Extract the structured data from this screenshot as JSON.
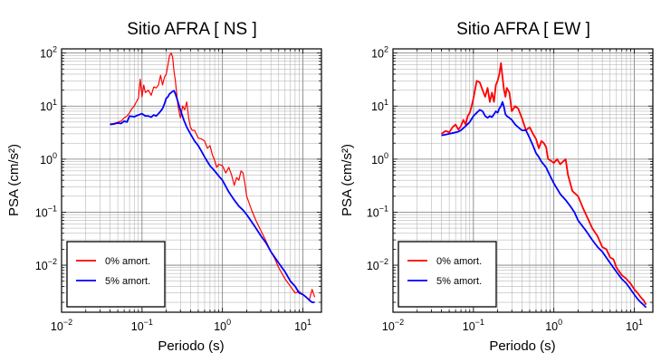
{
  "chart_data": [
    {
      "type": "line",
      "title": "Sitio AFRA [ NS ]",
      "xlabel": "Periodo (s)",
      "ylabel": "PSA (cm/s²)",
      "xscale": "log",
      "yscale": "log",
      "xlim": [
        0.01,
        17
      ],
      "ylim": [
        0.0013,
        120
      ],
      "x_ticks": [
        {
          "value": 0.01,
          "base": "10",
          "exp": "−2"
        },
        {
          "value": 0.1,
          "base": "10",
          "exp": "−1"
        },
        {
          "value": 1,
          "base": "10",
          "exp": "0"
        },
        {
          "value": 10,
          "base": "10",
          "exp": "1"
        }
      ],
      "y_ticks": [
        {
          "value": 0.01,
          "base": "10",
          "exp": "−2"
        },
        {
          "value": 0.1,
          "base": "10",
          "exp": "−1"
        },
        {
          "value": 1,
          "base": "10",
          "exp": "0"
        },
        {
          "value": 10,
          "base": "10",
          "exp": "1"
        },
        {
          "value": 100,
          "base": "10",
          "exp": "2"
        }
      ],
      "grid": true,
      "legend_position": "bottom-left",
      "series": [
        {
          "name": "0% amort.",
          "color": "#ff0000",
          "width": 1.2,
          "x": [
            0.04,
            0.045,
            0.05,
            0.055,
            0.06,
            0.065,
            0.07,
            0.075,
            0.08,
            0.085,
            0.09,
            0.095,
            0.1,
            0.105,
            0.11,
            0.12,
            0.13,
            0.14,
            0.15,
            0.16,
            0.17,
            0.18,
            0.19,
            0.2,
            0.21,
            0.22,
            0.23,
            0.24,
            0.25,
            0.26,
            0.28,
            0.3,
            0.32,
            0.34,
            0.36,
            0.38,
            0.4,
            0.42,
            0.45,
            0.5,
            0.55,
            0.6,
            0.65,
            0.7,
            0.75,
            0.8,
            0.85,
            0.9,
            1.0,
            1.1,
            1.2,
            1.3,
            1.4,
            1.5,
            1.6,
            1.7,
            1.8,
            1.9,
            2.0,
            2.3,
            2.6,
            3.0,
            3.5,
            4.0,
            4.5,
            5.0,
            5.5,
            6.0,
            7.0,
            8.0,
            9.0,
            10.0,
            11.0,
            12.0,
            13.0,
            14.0
          ],
          "y": [
            4.6,
            4.7,
            5.0,
            5.2,
            6.0,
            6.5,
            7.5,
            9.0,
            10.0,
            12.0,
            14.0,
            32.0,
            15.0,
            25.0,
            18.0,
            20.0,
            16.0,
            23.0,
            22.0,
            25.0,
            38.0,
            25.0,
            35.0,
            40.0,
            60.0,
            90.0,
            100.0,
            85.0,
            45.0,
            30.0,
            10.0,
            6.0,
            10.0,
            8.5,
            12.0,
            6.0,
            4.0,
            3.5,
            3.5,
            2.5,
            2.4,
            2.2,
            1.6,
            1.8,
            1.2,
            0.95,
            0.7,
            0.8,
            0.75,
            0.55,
            0.7,
            0.5,
            0.32,
            0.45,
            0.4,
            0.6,
            0.55,
            0.35,
            0.2,
            0.11,
            0.07,
            0.045,
            0.028,
            0.018,
            0.013,
            0.009,
            0.007,
            0.0055,
            0.004,
            0.003,
            0.0032,
            0.0028,
            0.0025,
            0.0022,
            0.0035,
            0.0025
          ]
        },
        {
          "name": "5% amort.",
          "color": "#0000ff",
          "width": 1.8,
          "x": [
            0.04,
            0.045,
            0.05,
            0.055,
            0.06,
            0.065,
            0.07,
            0.08,
            0.09,
            0.1,
            0.11,
            0.12,
            0.13,
            0.14,
            0.15,
            0.16,
            0.17,
            0.18,
            0.19,
            0.2,
            0.21,
            0.22,
            0.23,
            0.24,
            0.25,
            0.26,
            0.28,
            0.3,
            0.33,
            0.36,
            0.4,
            0.45,
            0.5,
            0.55,
            0.6,
            0.65,
            0.7,
            0.8,
            0.9,
            1.0,
            1.2,
            1.4,
            1.6,
            1.8,
            2.0,
            2.5,
            3.0,
            3.5,
            4.0,
            5.0,
            6.0,
            7.0,
            8.0,
            9.0,
            10.0,
            11.0,
            12.0,
            13.0,
            14.0
          ],
          "y": [
            4.5,
            4.6,
            4.8,
            4.7,
            5.2,
            5.0,
            6.5,
            6.3,
            6.8,
            7.2,
            6.5,
            6.5,
            6.2,
            6.8,
            6.5,
            7.2,
            8.0,
            9.0,
            11.0,
            14.0,
            15.0,
            17.0,
            18.0,
            19.0,
            19.5,
            17.0,
            12.0,
            8.5,
            5.5,
            4.0,
            3.0,
            2.2,
            1.8,
            1.4,
            1.1,
            0.9,
            0.75,
            0.6,
            0.48,
            0.4,
            0.24,
            0.17,
            0.13,
            0.11,
            0.09,
            0.055,
            0.036,
            0.026,
            0.018,
            0.011,
            0.0075,
            0.005,
            0.004,
            0.003,
            0.0028,
            0.0025,
            0.0022,
            0.002,
            0.002
          ]
        }
      ]
    },
    {
      "type": "line",
      "title": "Sitio AFRA [ EW ]",
      "xlabel": "Periodo (s)",
      "ylabel": "PSA (cm/s²)",
      "xscale": "log",
      "yscale": "log",
      "xlim": [
        0.01,
        17
      ],
      "ylim": [
        0.0013,
        120
      ],
      "x_ticks": [
        {
          "value": 0.01,
          "base": "10",
          "exp": "−2"
        },
        {
          "value": 0.1,
          "base": "10",
          "exp": "−1"
        },
        {
          "value": 1,
          "base": "10",
          "exp": "0"
        },
        {
          "value": 10,
          "base": "10",
          "exp": "1"
        }
      ],
      "y_ticks": [
        {
          "value": 0.01,
          "base": "10",
          "exp": "−2"
        },
        {
          "value": 0.1,
          "base": "10",
          "exp": "−1"
        },
        {
          "value": 1,
          "base": "10",
          "exp": "0"
        },
        {
          "value": 10,
          "base": "10",
          "exp": "1"
        },
        {
          "value": 100,
          "base": "10",
          "exp": "2"
        }
      ],
      "grid": true,
      "legend_position": "bottom-left",
      "series": [
        {
          "name": "0% amort.",
          "color": "#ff0000",
          "width": 1.8,
          "x": [
            0.04,
            0.045,
            0.05,
            0.055,
            0.06,
            0.065,
            0.07,
            0.075,
            0.08,
            0.085,
            0.09,
            0.095,
            0.1,
            0.11,
            0.12,
            0.13,
            0.14,
            0.15,
            0.16,
            0.17,
            0.18,
            0.19,
            0.2,
            0.21,
            0.22,
            0.23,
            0.24,
            0.25,
            0.26,
            0.28,
            0.3,
            0.33,
            0.36,
            0.4,
            0.45,
            0.5,
            0.55,
            0.6,
            0.65,
            0.7,
            0.75,
            0.8,
            0.85,
            0.9,
            1.0,
            1.1,
            1.2,
            1.3,
            1.4,
            1.5,
            1.7,
            2.0,
            2.3,
            2.6,
            3.0,
            3.5,
            4.0,
            4.5,
            5.0,
            5.5,
            6.0,
            7.0,
            8.0,
            9.0,
            10.0,
            11.0,
            12.0,
            13.0,
            14.0
          ],
          "y": [
            3.0,
            3.4,
            3.2,
            4.0,
            4.5,
            3.6,
            4.2,
            5.5,
            4.5,
            6.5,
            7.5,
            10.0,
            14.0,
            30.0,
            28.0,
            20.0,
            15.0,
            22.0,
            12.0,
            18.0,
            12.0,
            25.0,
            30.0,
            40.0,
            65.0,
            35.0,
            20.0,
            15.0,
            22.0,
            18.0,
            8.0,
            10.0,
            9.0,
            6.0,
            3.5,
            4.0,
            3.0,
            2.4,
            1.6,
            2.2,
            2.0,
            1.7,
            1.0,
            0.95,
            0.85,
            1.0,
            0.8,
            0.9,
            1.0,
            0.5,
            0.25,
            0.2,
            0.12,
            0.08,
            0.05,
            0.035,
            0.022,
            0.02,
            0.014,
            0.013,
            0.009,
            0.0065,
            0.0055,
            0.0045,
            0.0035,
            0.003,
            0.0025,
            0.0022,
            0.0018
          ]
        },
        {
          "name": "5% amort.",
          "color": "#0000ff",
          "width": 1.8,
          "x": [
            0.04,
            0.045,
            0.05,
            0.055,
            0.06,
            0.065,
            0.07,
            0.08,
            0.09,
            0.1,
            0.11,
            0.12,
            0.13,
            0.14,
            0.15,
            0.16,
            0.17,
            0.18,
            0.19,
            0.2,
            0.21,
            0.22,
            0.23,
            0.24,
            0.25,
            0.26,
            0.28,
            0.3,
            0.33,
            0.36,
            0.4,
            0.45,
            0.5,
            0.55,
            0.6,
            0.65,
            0.7,
            0.8,
            0.9,
            1.0,
            1.2,
            1.4,
            1.6,
            1.8,
            2.0,
            2.5,
            3.0,
            3.5,
            4.0,
            5.0,
            6.0,
            7.0,
            8.0,
            9.0,
            10.0,
            11.0,
            12.0,
            13.0,
            14.0
          ],
          "y": [
            2.8,
            2.9,
            3.0,
            3.1,
            3.2,
            3.3,
            3.5,
            4.2,
            5.0,
            6.5,
            7.5,
            8.5,
            8.0,
            6.5,
            6.0,
            6.5,
            6.2,
            7.0,
            8.0,
            7.5,
            9.0,
            10.0,
            12.0,
            9.5,
            7.0,
            6.5,
            6.0,
            5.5,
            4.5,
            4.0,
            3.5,
            3.5,
            2.5,
            1.8,
            1.3,
            1.1,
            0.9,
            0.7,
            0.48,
            0.35,
            0.22,
            0.17,
            0.13,
            0.1,
            0.07,
            0.045,
            0.03,
            0.022,
            0.018,
            0.011,
            0.0075,
            0.0055,
            0.0045,
            0.0035,
            0.0028,
            0.0023,
            0.002,
            0.0018,
            0.0016
          ]
        }
      ]
    }
  ]
}
